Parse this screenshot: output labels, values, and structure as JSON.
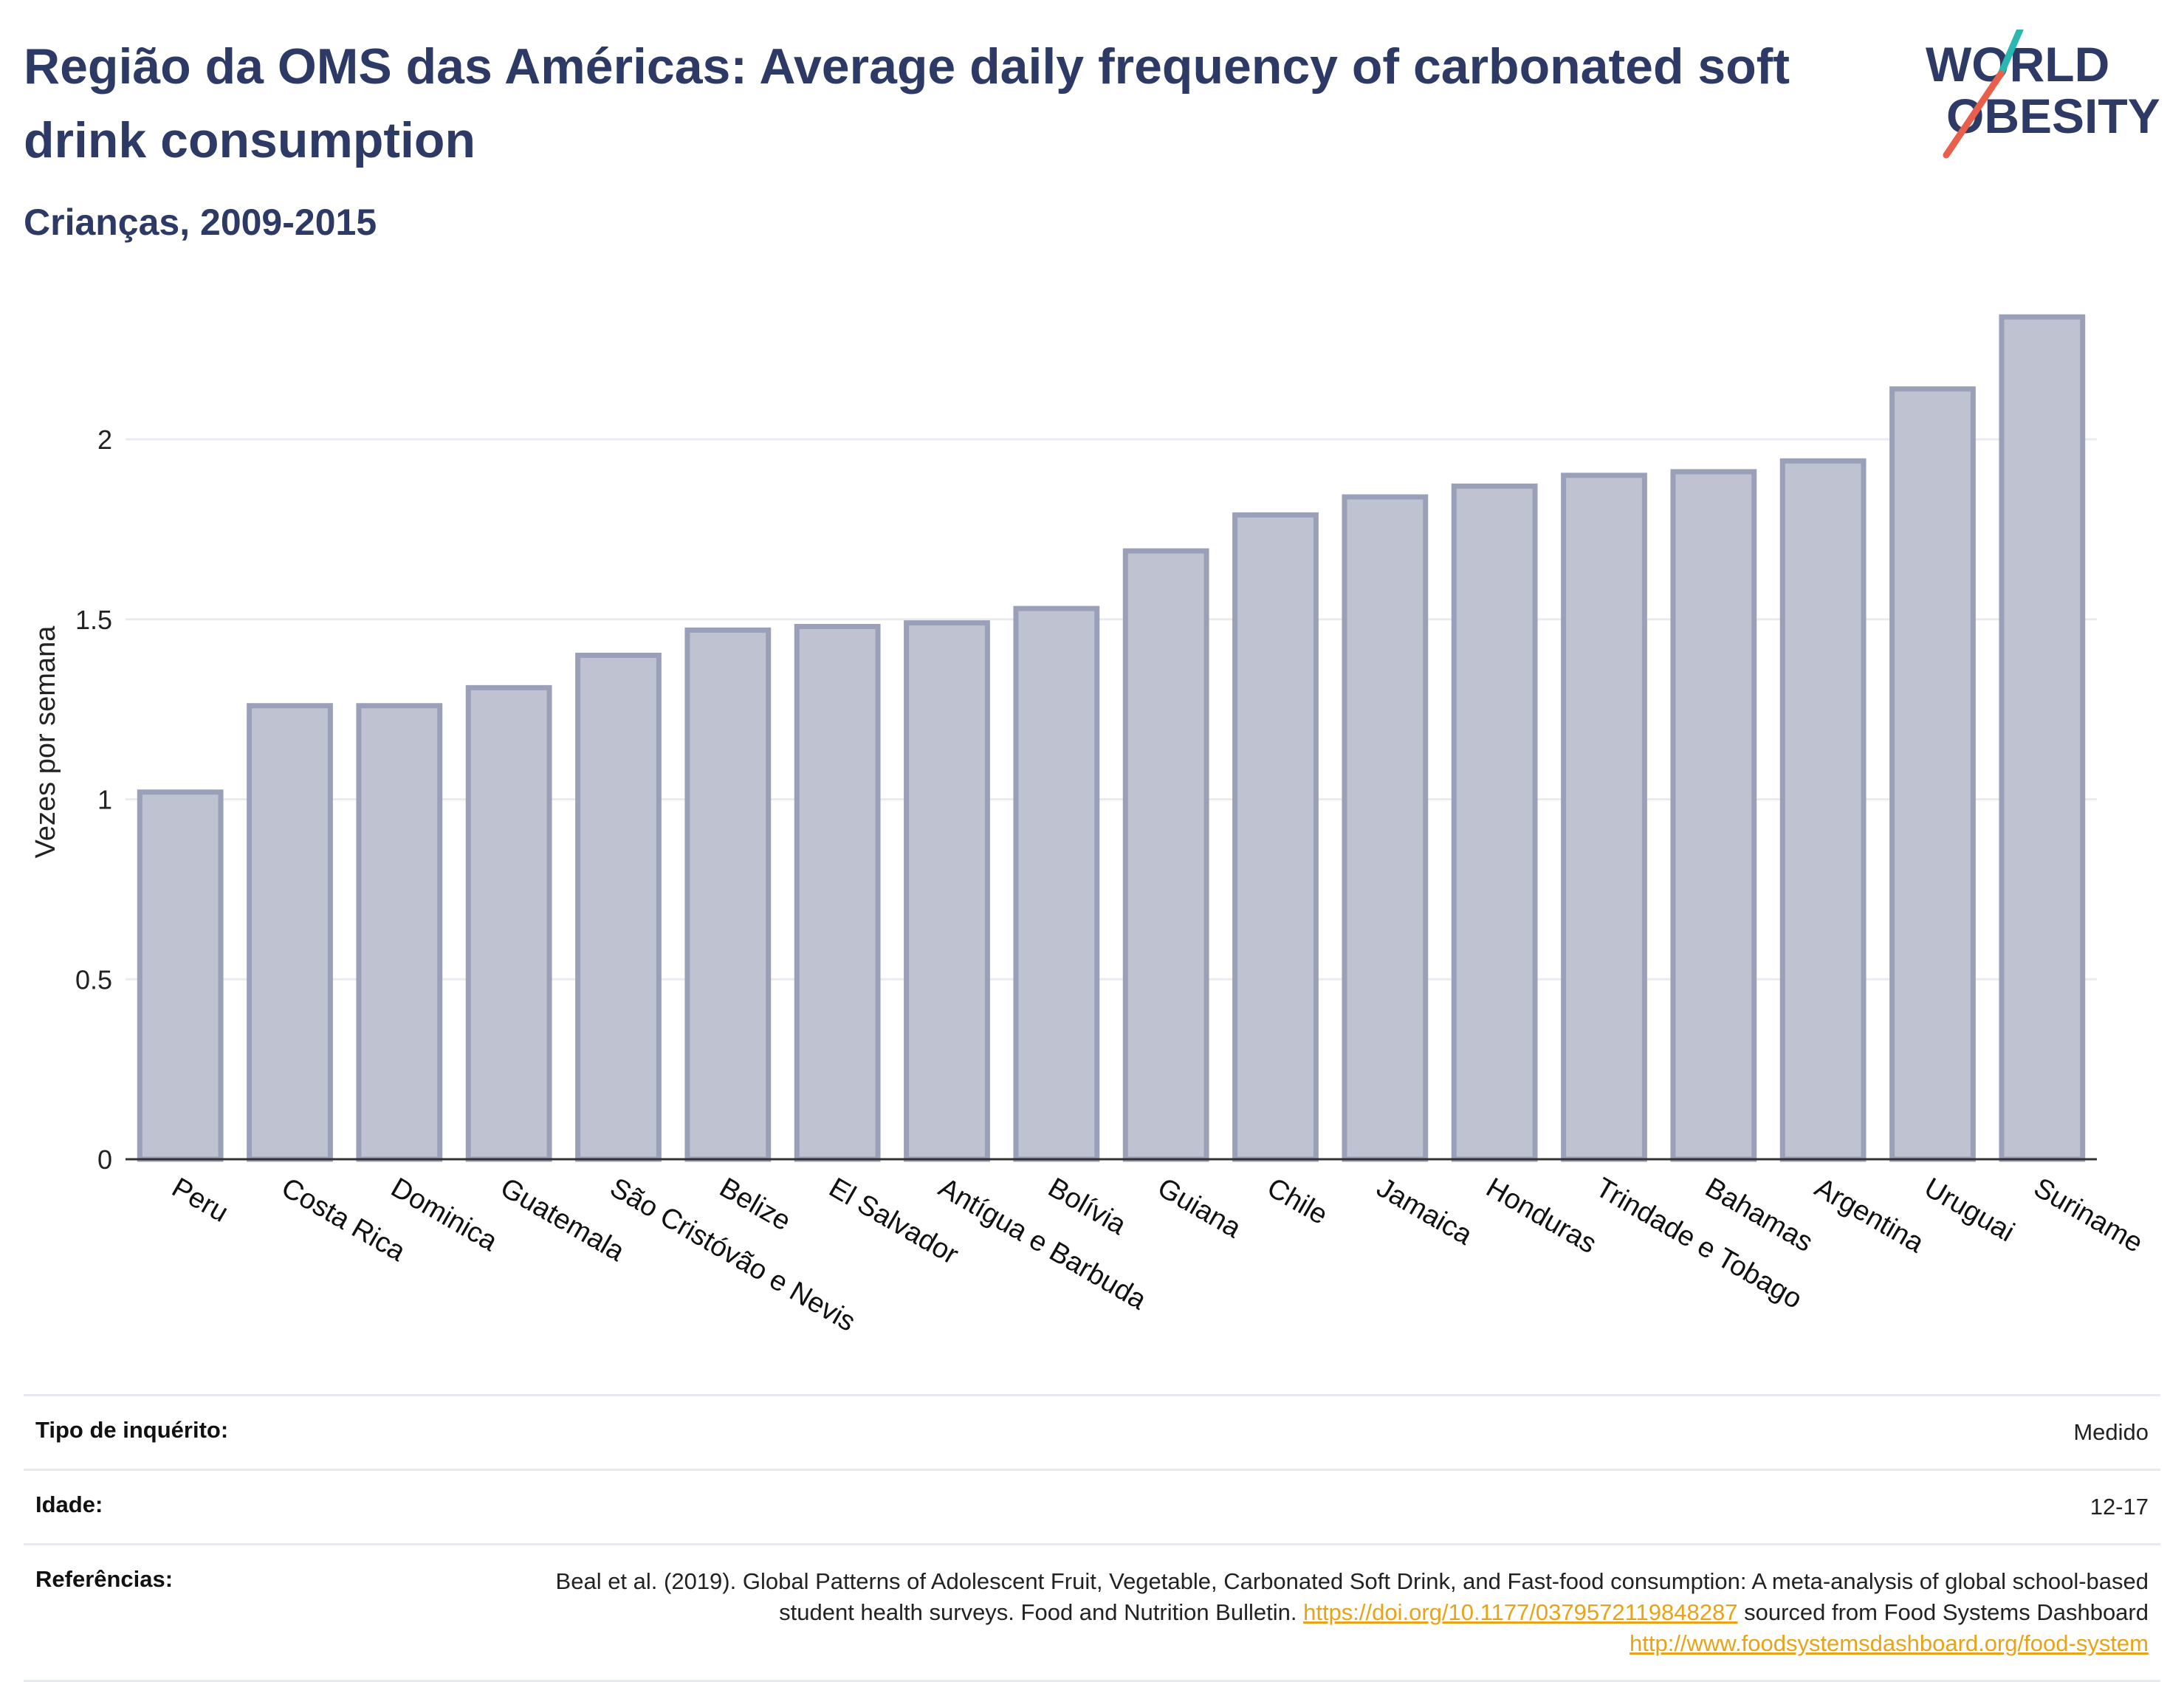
{
  "header": {
    "title": "Região da OMS das Américas: Average daily frequency of carbonated soft drink consumption",
    "subtitle": "Crianças, 2009-2015"
  },
  "logo": {
    "line1": "WORLD",
    "line2": "OBESITY",
    "colors": {
      "text": "#2d3a66",
      "slash_teal": "#2ab7b0",
      "slash_red": "#e8604c"
    }
  },
  "colors": {
    "bar_fill": "#bfc3d1",
    "bar_stroke": "#9aa0b8",
    "grid": "#e9ebf0",
    "axis": "#333333",
    "title": "#2d3a66",
    "link": "#e8a317"
  },
  "chart_data": {
    "type": "bar",
    "title": "",
    "xlabel": "",
    "ylabel": "Vezes por semana",
    "ylim": [
      0,
      2.4
    ],
    "yticks": [
      0,
      0.5,
      1,
      1.5,
      2
    ],
    "ytick_labels": [
      "0",
      "0.5",
      "1",
      "1.5",
      "2"
    ],
    "grid": true,
    "categories": [
      "Peru",
      "Costa Rica",
      "Dominica",
      "Guatemala",
      "São Cristóvão e Nevis",
      "Belize",
      "El Salvador",
      "Antígua e Barbuda",
      "Bolívia",
      "Guiana",
      "Chile",
      "Jamaica",
      "Honduras",
      "Trindade e Tobago",
      "Bahamas",
      "Argentina",
      "Uruguai",
      "Suriname"
    ],
    "values": [
      1.02,
      1.26,
      1.26,
      1.31,
      1.4,
      1.47,
      1.48,
      1.49,
      1.53,
      1.69,
      1.79,
      1.84,
      1.87,
      1.9,
      1.91,
      1.94,
      2.14,
      2.34
    ]
  },
  "meta": {
    "survey_label": "Tipo de inquérito:",
    "survey_value": "Medido",
    "age_label": "Idade:",
    "age_value": "12-17",
    "ref_label": "Referências:",
    "ref_text_1": "Beal et al. (2019). Global Patterns of Adolescent Fruit, Vegetable, Carbonated Soft Drink, and Fast-food consumption: A meta-analysis of global school-based student health surveys. Food and Nutrition Bulletin. ",
    "ref_link_1": "https://doi.org/10.1177/0379572119848287",
    "ref_text_2": " sourced from Food Systems Dashboard ",
    "ref_link_2": "http://www.foodsystemsdashboard.org/food-system"
  }
}
